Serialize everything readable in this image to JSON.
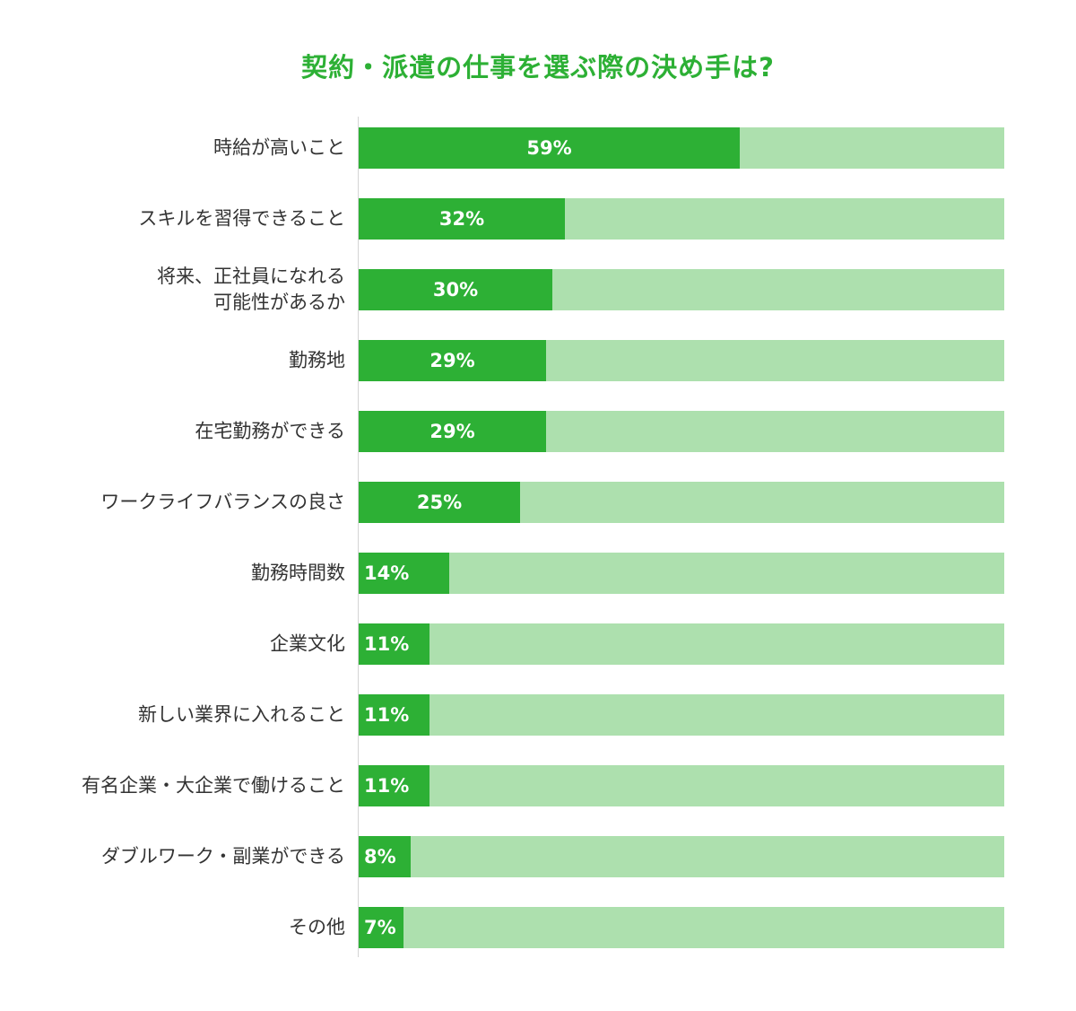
{
  "chart_data": {
    "type": "bar",
    "orientation": "horizontal",
    "title": "契約・派遣の仕事を選ぶ際の決め手は?",
    "categories": [
      "時給が高いこと",
      "スキルを習得できること",
      "将来、正社員になれる\n可能性があるか",
      "勤務地",
      "在宅勤務ができる",
      "ワークライフバランスの良さ",
      "勤務時間数",
      "企業文化",
      "新しい業界に入れること",
      "有名企業・大企業で働けること",
      "ダブルワーク・副業ができる",
      "その他"
    ],
    "values": [
      59,
      32,
      30,
      29,
      29,
      25,
      14,
      11,
      11,
      11,
      8,
      7
    ],
    "value_labels": [
      "59%",
      "32%",
      "30%",
      "29%",
      "29%",
      "25%",
      "14%",
      "11%",
      "11%",
      "11%",
      "8%",
      "7%"
    ],
    "xlim": [
      0,
      100
    ],
    "grid": false,
    "legend": "none",
    "colors": {
      "bar": "#2db035",
      "track": "#ade0ae",
      "title": "#2db035",
      "label": "#333333",
      "value_text": "#ffffff"
    }
  }
}
